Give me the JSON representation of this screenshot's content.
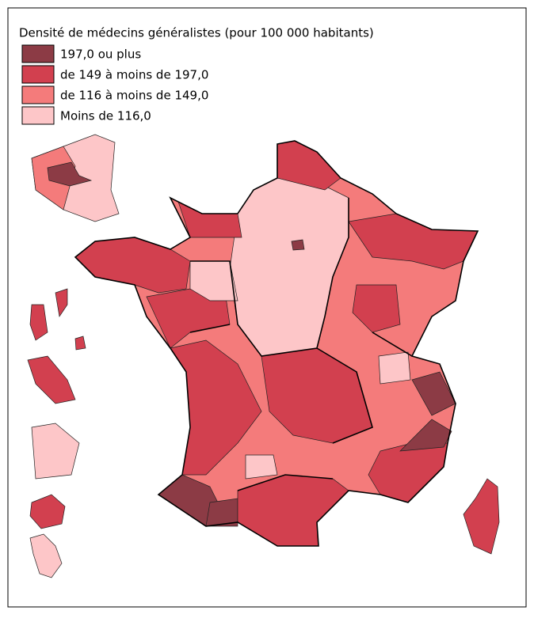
{
  "legend": {
    "title": "Densité de médecins généralistes (pour 100 000 habitants)",
    "items": [
      {
        "label": "197,0 ou plus",
        "color": "#8c3b45"
      },
      {
        "label": "de 149 à moins de 197,0",
        "color": "#d2404f"
      },
      {
        "label": "de 116 à moins de 149,0",
        "color": "#f47b7b"
      },
      {
        "label": "Moins de 116,0",
        "color": "#fdc6c8"
      }
    ]
  }
}
